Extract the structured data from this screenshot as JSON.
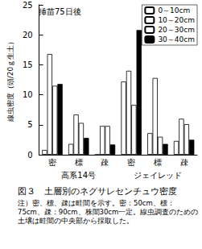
{
  "chart_data": {
    "type": "bar",
    "annotations": [
      "挿苗75日後"
    ],
    "y_label": "線虫密度（頭/20ｇ生土）",
    "categories": [
      "密",
      "標",
      "疎",
      "密",
      "標",
      "疎"
    ],
    "group_labels": [
      "高系14号",
      "ジェイレッド"
    ],
    "series": [
      {
        "name": "0～10cm",
        "color": "#ffffff",
        "values": [
          0.8,
          1.8,
          0,
          12.2,
          3.6,
          2.3
        ]
      },
      {
        "name": "10～20cm",
        "color": "#ffffff",
        "values": [
          16.8,
          6.7,
          4.8,
          14.0,
          12.8,
          6.0
        ]
      },
      {
        "name": "20～30cm",
        "color": "#ffffff",
        "values": [
          11.5,
          5.3,
          4.8,
          8.3,
          3.0,
          5.1
        ]
      },
      {
        "name": "30～40cm",
        "color": "#000000",
        "values": [
          11.8,
          2.8,
          1.7,
          20.8,
          1.8,
          2.5
        ]
      }
    ],
    "ylim": [
      0,
      25
    ],
    "yticks": [
      0,
      5,
      10,
      15,
      20,
      25
    ],
    "grid": false,
    "legend": "upper right",
    "caption": "図３　土層別のネグサレセンチュウ密度",
    "note": "注）密、標、疎は畦間を示す。密：50cm、標：75cm、疎：90cm、株間30cm一定。線虫調査のための土壌は畦間の中央部から採取した。"
  }
}
